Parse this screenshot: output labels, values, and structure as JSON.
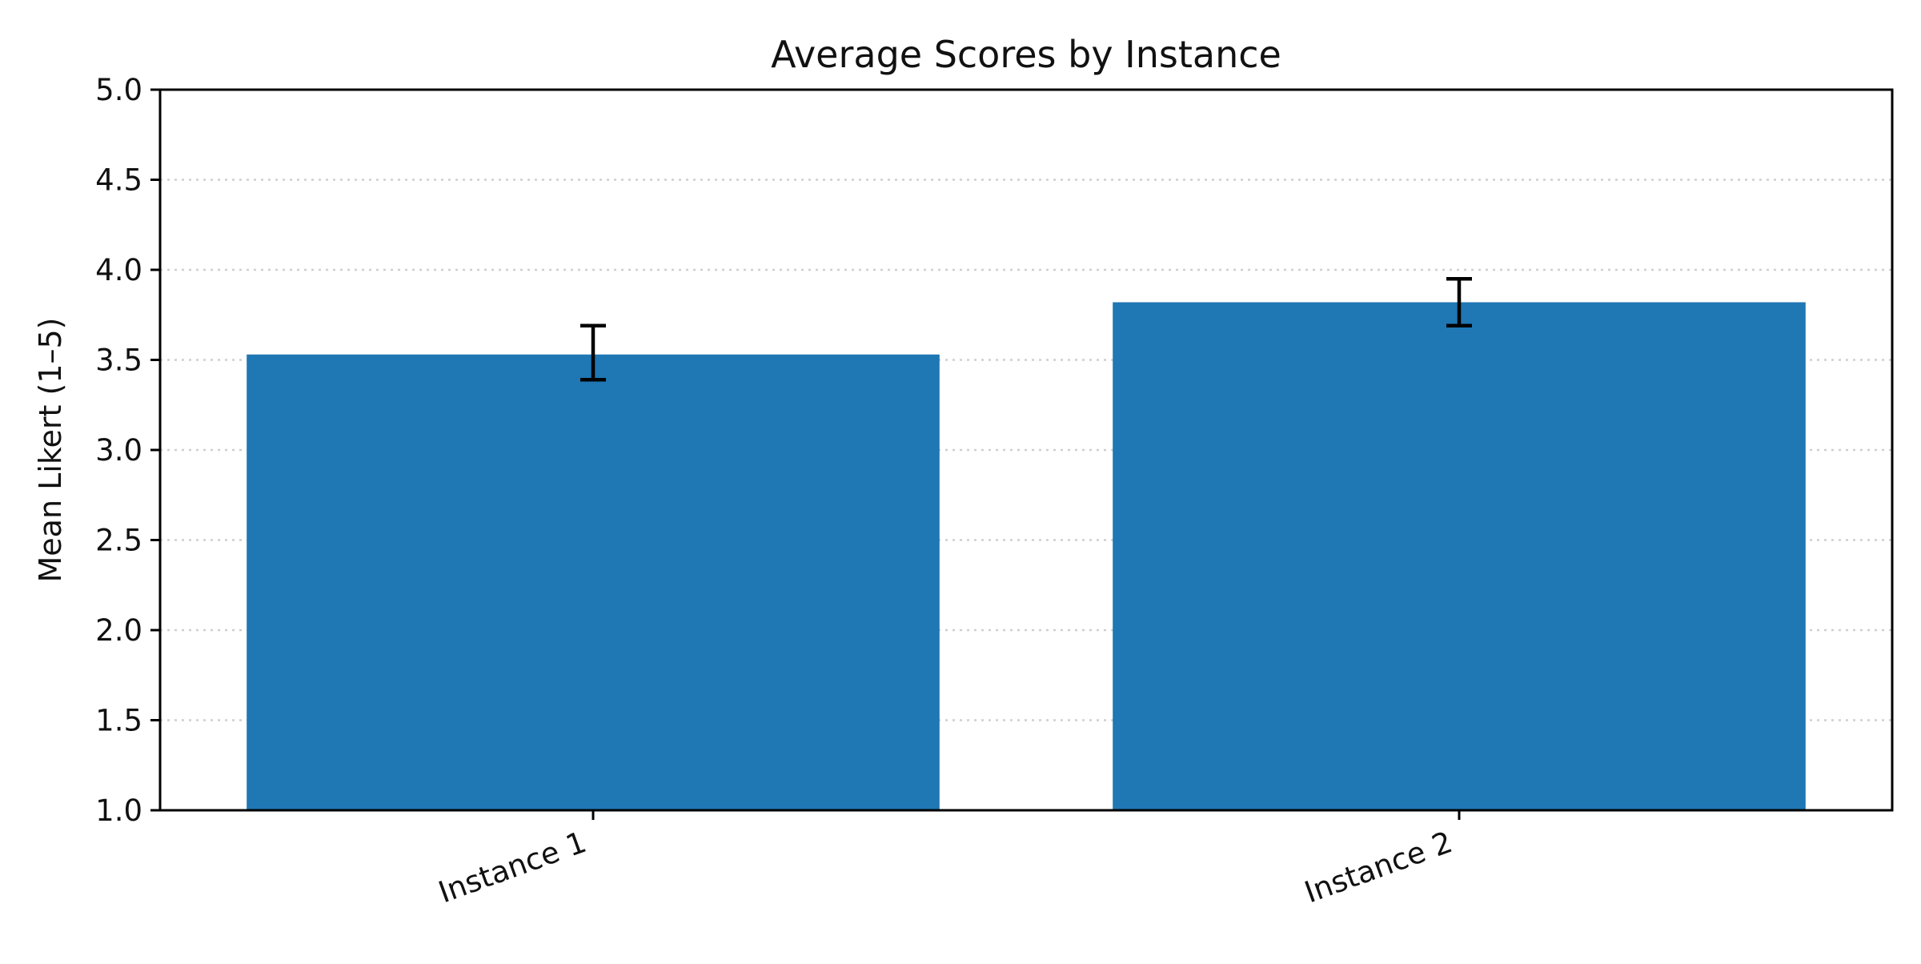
{
  "chart_data": {
    "type": "bar",
    "title": "Average Scores by Instance",
    "xlabel": "",
    "ylabel": "Mean Likert (1–5)",
    "categories": [
      "Instance 1",
      "Instance 2"
    ],
    "values": [
      3.53,
      3.82
    ],
    "errors": [
      [
        3.39,
        3.69
      ],
      [
        3.69,
        3.95
      ]
    ],
    "ylim": [
      1.0,
      5.0
    ],
    "yticks": [
      "1.0",
      "1.5",
      "2.0",
      "2.5",
      "3.0",
      "3.5",
      "4.0",
      "4.5",
      "5.0"
    ],
    "grid": "horizontal dotted",
    "bar_color": "#1f77b4",
    "error_color": "#000000"
  }
}
